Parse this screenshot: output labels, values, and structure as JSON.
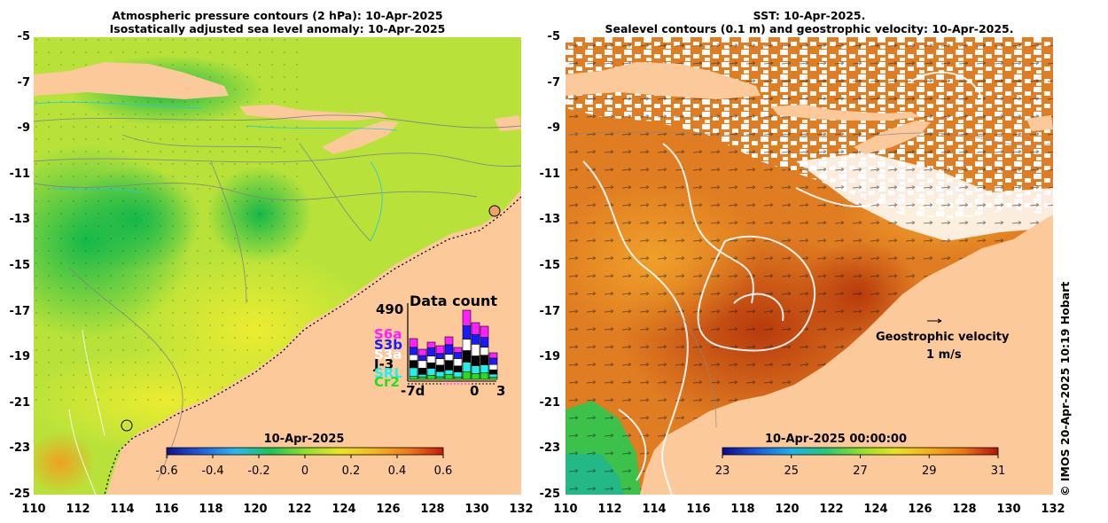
{
  "left": {
    "title_line1": "Atmospheric pressure contours (2 hPa): 10-Apr-2025",
    "title_line2": "Isostatically adjusted sea level anomaly: 10-Apr-2025",
    "colorbar": {
      "label": "10-Apr-2025",
      "ticks": [
        "-0.6",
        "-0.4",
        "-0.2",
        "0",
        "0.2",
        "0.4",
        "0.6"
      ],
      "min": -0.6,
      "max": 0.6,
      "colors": [
        "#101090",
        "#1f5fe0",
        "#2bb8f0",
        "#19c458",
        "#8ee02a",
        "#e8e820",
        "#f5b820",
        "#ef7a18",
        "#c81a0a"
      ]
    },
    "data_count": {
      "title": "Data count",
      "max_label": "490",
      "satellites": [
        {
          "name": "S6a",
          "color": "#ff20ff"
        },
        {
          "name": "S3b",
          "color": "#1a1aff"
        },
        {
          "name": "S3a",
          "color": "#ffffff"
        },
        {
          "name": "J-3",
          "color": "#000000"
        },
        {
          "name": "SRL",
          "color": "#20f0f0"
        },
        {
          "name": "Cr2",
          "color": "#20e020"
        }
      ],
      "x_labels": [
        "-7d",
        "0",
        "3"
      ]
    }
  },
  "right": {
    "title_line1": "SST: 10-Apr-2025.",
    "title_line2": "Sealevel contours (0.1 m) and geostrophic velocity: 10-Apr-2025.",
    "colorbar": {
      "label": "10-Apr-2025 00:00:00",
      "ticks": [
        "23",
        "25",
        "27",
        "29",
        "31"
      ],
      "min": 23,
      "max": 31,
      "colors": [
        "#0a0a8c",
        "#1a5ae0",
        "#1ab4e8",
        "#24c878",
        "#8ee028",
        "#e8e420",
        "#f5b01c",
        "#ec7414",
        "#b41408"
      ]
    },
    "velocity_label": "Geostrophic velocity",
    "velocity_scale": "1 m/s"
  },
  "axes": {
    "y_ticks": [
      "-5",
      "-7",
      "-9",
      "-11",
      "-13",
      "-15",
      "-17",
      "-19",
      "-21",
      "-23",
      "-25"
    ],
    "x_ticks": [
      "110",
      "112",
      "114",
      "116",
      "118",
      "120",
      "122",
      "124",
      "126",
      "128",
      "130",
      "132"
    ]
  },
  "colors": {
    "land": "#fbc99a",
    "sea_left": "#b8e23a",
    "sea_right": "#e07d22"
  },
  "credit": "© IMOS 20-Apr-2025 10:19 Hobart"
}
